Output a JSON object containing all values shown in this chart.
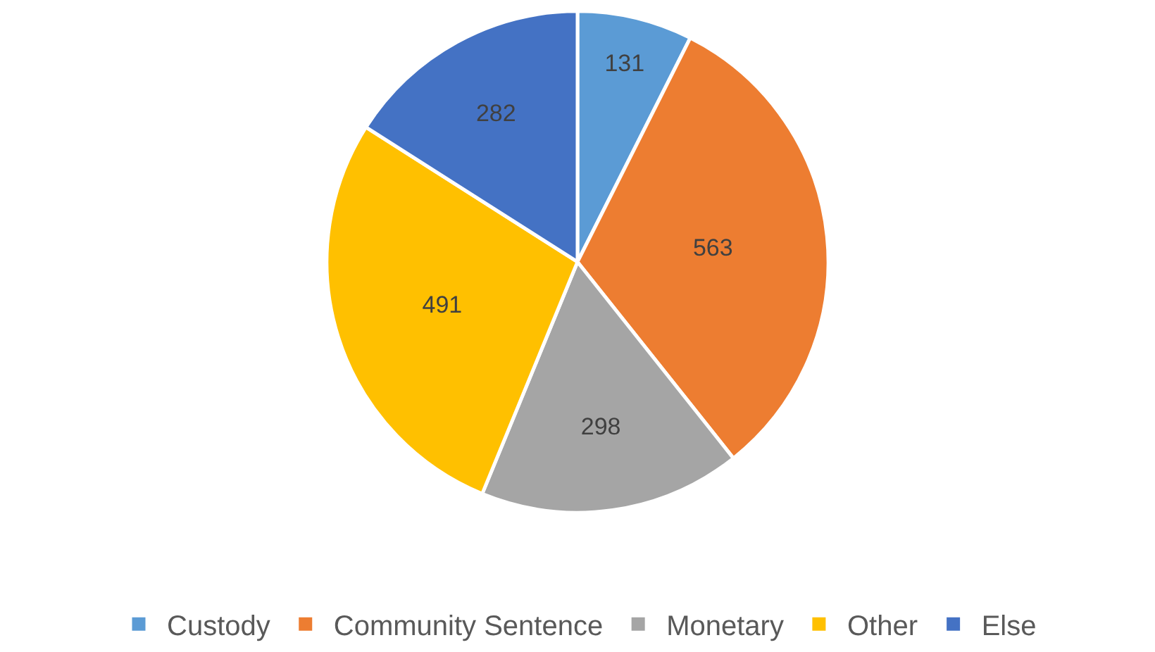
{
  "chart_data": {
    "type": "pie",
    "categories": [
      "Custody",
      "Community Sentence",
      "Monetary",
      "Other",
      "Else"
    ],
    "values": [
      131,
      563,
      298,
      491,
      282
    ],
    "colors": [
      "#5b9bd5",
      "#ed7d31",
      "#a5a5a5",
      "#ffc000",
      "#4472c4"
    ],
    "data_labels": true,
    "legend": "bottom"
  }
}
